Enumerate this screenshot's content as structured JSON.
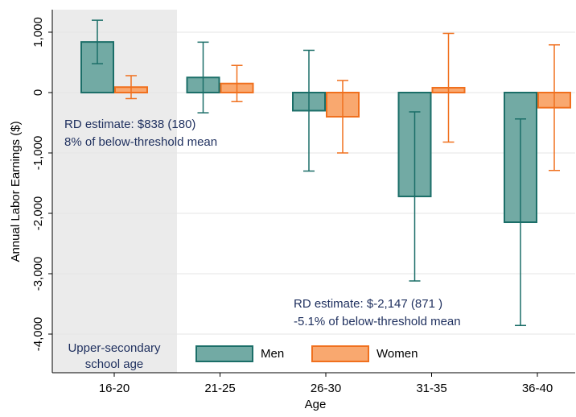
{
  "chart_data": {
    "type": "bar",
    "xlabel": "Age",
    "ylabel": "Annual Labor Earnings ($)",
    "categories": [
      "16-20",
      "21-25",
      "26-30",
      "31-35",
      "36-40"
    ],
    "series": [
      {
        "name": "Men",
        "color": "#72aaa4",
        "edgecolor": "#1b6e68",
        "values": [
          838,
          250,
          -300,
          -1720,
          -2147
        ],
        "errors": [
          360,
          585,
          1000,
          1400,
          1710
        ]
      },
      {
        "name": "Women",
        "color": "#f9a86f",
        "edgecolor": "#f0701e",
        "values": [
          90,
          150,
          -400,
          80,
          -250
        ],
        "errors": [
          190,
          300,
          600,
          900,
          1040
        ]
      }
    ],
    "ylim": [
      -4640,
      1373
    ],
    "yticks": [
      {
        "value": 1000,
        "label": "1,000"
      },
      0,
      {
        "value": -1000,
        "label": "-1,000"
      },
      {
        "value": -2000,
        "label": "-2,000"
      },
      {
        "value": -3000,
        "label": "-3,000"
      },
      {
        "value": -4000,
        "label": "-4,000"
      }
    ],
    "grid": true,
    "shaded_label": [
      "Upper-secondary",
      "school age"
    ],
    "annotations": [
      [
        "RD estimate: $838 (180)",
        "8% of below-threshold mean"
      ],
      [
        "RD estimate: $-2,147 (871 )",
        "-5.1% of below-threshold mean"
      ]
    ]
  }
}
